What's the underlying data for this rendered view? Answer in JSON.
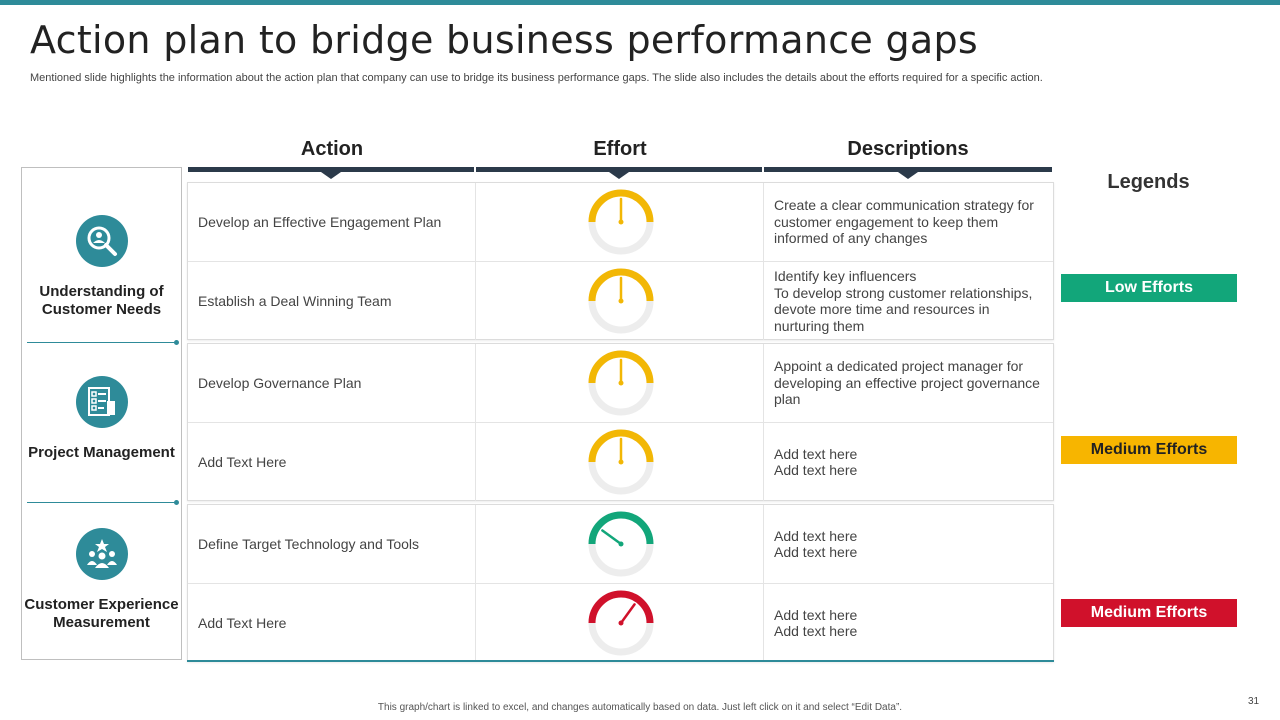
{
  "slide": {
    "title": "Action plan to bridge business performance gaps",
    "subtitle": "Mentioned slide highlights the information about the action plan that company can use to bridge its business performance gaps. The slide also includes the details about the efforts required for a specific action.",
    "footer_note": "This graph/chart is linked to excel, and changes automatically based on data. Just left click on it and select “Edit Data”.",
    "page_number": "31",
    "accent_color": "#2e8b99"
  },
  "categories": [
    {
      "label": "Understanding of Customer Needs",
      "icon": "user-search-icon"
    },
    {
      "label": "Project Management",
      "icon": "checklist-icon"
    },
    {
      "label": "Customer Experience Measurement",
      "icon": "customer-group-star-icon"
    }
  ],
  "table": {
    "headers": {
      "action": "Action",
      "effort": "Effort",
      "descriptions": "Descriptions"
    },
    "rows": [
      {
        "action": "Develop an Effective Engagement Plan",
        "effort": "Medium Efforts",
        "gauge_color": "#f2b705",
        "gauge_level": 0.5,
        "description": [
          "Create a clear communication strategy for customer engagement to keep them informed of any changes"
        ]
      },
      {
        "action": "Establish a Deal Winning Team",
        "effort": "Medium Efforts",
        "gauge_color": "#f2b705",
        "gauge_level": 0.5,
        "description": [
          "Identify key influencers",
          "To develop strong customer relationships, devote more time and resources in nurturing them"
        ]
      },
      {
        "action": "Develop Governance Plan",
        "effort": "Medium Efforts",
        "gauge_color": "#f2b705",
        "gauge_level": 0.5,
        "description": [
          "Appoint a dedicated project manager for developing an effective project governance plan"
        ]
      },
      {
        "action": "Add Text Here",
        "effort": "Medium Efforts",
        "gauge_color": "#f2b705",
        "gauge_level": 0.5,
        "description": [
          "Add text here",
          "Add text here"
        ]
      },
      {
        "action": "Define Target Technology and Tools",
        "effort": "Low Efforts",
        "gauge_color": "#12a67a",
        "gauge_level": 0.2,
        "description": [
          "Add text here",
          "Add text here"
        ]
      },
      {
        "action": "Add Text Here",
        "effort": "Medium Efforts",
        "gauge_color": "#d0112b",
        "gauge_level": 0.7,
        "description": [
          "Add text here",
          "Add text here"
        ]
      }
    ]
  },
  "legends": {
    "title": "Legends",
    "items": [
      {
        "label": "Low Efforts",
        "bg": "#12a67a",
        "fg": "#ffffff"
      },
      {
        "label": "Medium Efforts",
        "bg": "#f7b500",
        "fg": "#222222"
      },
      {
        "label": "Medium Efforts",
        "bg": "#d0112b",
        "fg": "#ffffff"
      }
    ]
  }
}
